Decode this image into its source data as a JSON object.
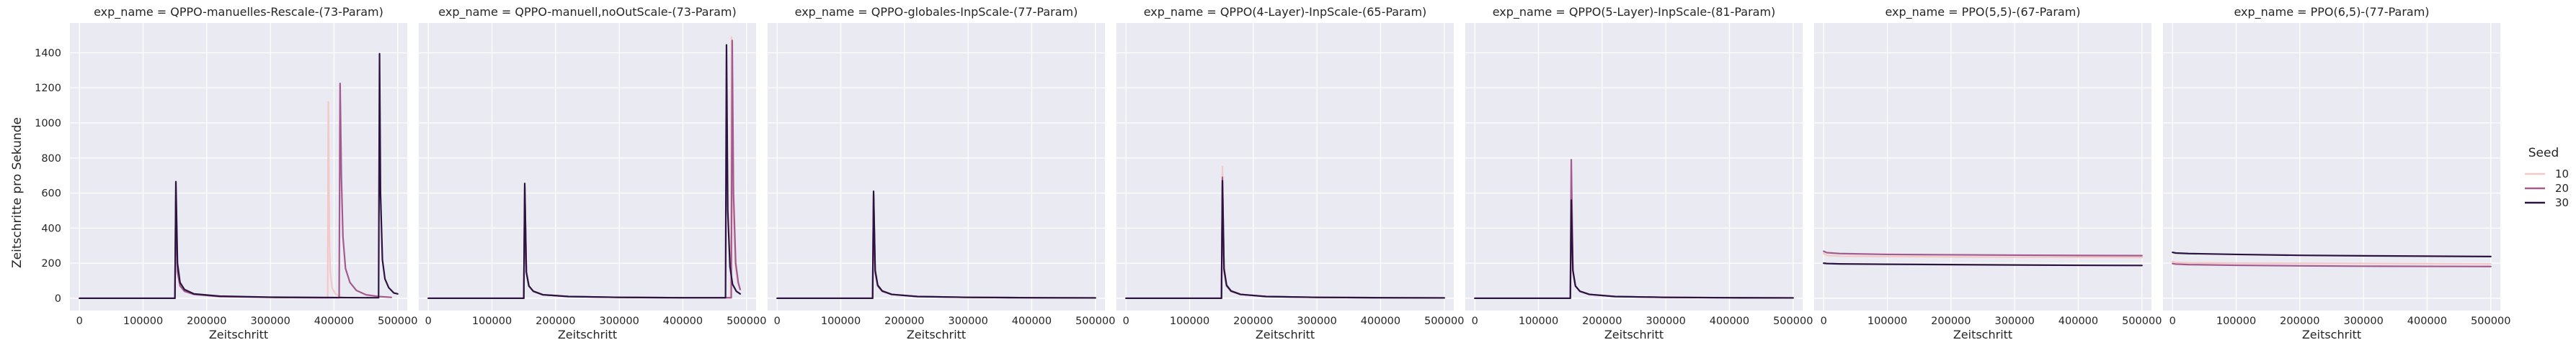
{
  "figure": {
    "ylabel": "Zeitschritte pro Sekunde",
    "xlabel": "Zeitschritt",
    "legend": {
      "title": "Seed",
      "entries": [
        {
          "label": "10",
          "color": "#f3c8c7"
        },
        {
          "label": "20",
          "color": "#a45a8e"
        },
        {
          "label": "30",
          "color": "#2c1440"
        }
      ],
      "placement": "right"
    }
  },
  "chart_data": [
    {
      "type": "line",
      "title": "exp_name = QPPO-manuelles-Rescale-(73-Param)",
      "xlabel": "Zeitschritt",
      "ylabel": "Zeitschritte pro Sekunde",
      "xlim": [
        -15000,
        515000
      ],
      "ylim": [
        -70,
        1570
      ],
      "xticks": [
        0,
        100000,
        200000,
        300000,
        400000,
        500000
      ],
      "xticklabels": [
        "0",
        "100000",
        "200000",
        "300000",
        "400000",
        "500000"
      ],
      "yticks": [
        0,
        200,
        400,
        600,
        800,
        1000,
        1200,
        1400
      ],
      "yticklabels": [
        "0",
        "200",
        "400",
        "600",
        "800",
        "1000",
        "1200",
        "1400"
      ],
      "grid": true,
      "series": [
        {
          "name": "10",
          "color": "#f3c8c7",
          "x": [
            0,
            100000,
            150000,
            151500,
            154000,
            158000,
            165000,
            180000,
            220000,
            300000,
            380000,
            390000,
            391000,
            392500,
            394000,
            397000,
            402000,
            410000,
            415000
          ],
          "y": [
            0,
            0,
            0,
            580,
            150,
            70,
            40,
            22,
            10,
            5,
            3,
            3,
            1120,
            400,
            150,
            60,
            25,
            10,
            5
          ]
        },
        {
          "name": "20",
          "color": "#a45a8e",
          "x": [
            0,
            100000,
            150000,
            151500,
            154000,
            158000,
            165000,
            180000,
            220000,
            300000,
            380000,
            408000,
            409500,
            411500,
            414000,
            418000,
            425000,
            435000,
            450000,
            470000,
            490000
          ],
          "y": [
            0,
            0,
            0,
            620,
            150,
            70,
            40,
            22,
            10,
            5,
            3,
            3,
            1225,
            700,
            350,
            170,
            90,
            45,
            20,
            10,
            5
          ]
        },
        {
          "name": "30",
          "color": "#2c1440",
          "x": [
            0,
            100000,
            150000,
            151500,
            154000,
            158000,
            165000,
            180000,
            220000,
            300000,
            400000,
            460000,
            470000,
            471500,
            473000,
            476000,
            480000,
            486000,
            494000,
            500000
          ],
          "y": [
            0,
            0,
            0,
            665,
            200,
            90,
            50,
            25,
            12,
            6,
            4,
            3,
            3,
            1395,
            600,
            220,
            110,
            60,
            30,
            25
          ]
        }
      ]
    },
    {
      "type": "line",
      "title": "exp_name = QPPO-manuell,noOutScale-(73-Param)",
      "xlabel": "Zeitschritt",
      "xlim": [
        -15000,
        515000
      ],
      "ylim": [
        -70,
        1570
      ],
      "xticks": [
        0,
        100000,
        200000,
        300000,
        400000,
        500000
      ],
      "xticklabels": [
        "0",
        "100000",
        "200000",
        "300000",
        "400000",
        "500000"
      ],
      "grid": true,
      "series": [
        {
          "name": "10",
          "color": "#f3c8c7",
          "x": [
            0,
            100000,
            150000,
            151500,
            154000,
            158000,
            165000,
            180000,
            220000,
            300000,
            400000,
            465000,
            475000,
            476500,
            478500,
            482000,
            486000,
            490000
          ],
          "y": [
            0,
            0,
            0,
            600,
            150,
            70,
            40,
            20,
            10,
            5,
            3,
            3,
            3,
            1490,
            600,
            200,
            90,
            50
          ]
        },
        {
          "name": "20",
          "color": "#a45a8e",
          "x": [
            0,
            100000,
            150000,
            151500,
            154000,
            158000,
            165000,
            180000,
            220000,
            300000,
            400000,
            465000,
            476000,
            477500,
            479500,
            483000,
            487000,
            490000
          ],
          "y": [
            0,
            0,
            0,
            630,
            150,
            70,
            40,
            20,
            10,
            5,
            3,
            3,
            3,
            1470,
            600,
            200,
            90,
            50
          ]
        },
        {
          "name": "30",
          "color": "#2c1440",
          "x": [
            0,
            100000,
            150000,
            151500,
            154000,
            158000,
            165000,
            180000,
            220000,
            300000,
            400000,
            455000,
            467000,
            468500,
            470500,
            474000,
            478000,
            484000,
            490000
          ],
          "y": [
            0,
            0,
            0,
            655,
            150,
            70,
            40,
            20,
            10,
            5,
            3,
            3,
            3,
            1445,
            500,
            180,
            80,
            40,
            25
          ]
        }
      ]
    },
    {
      "type": "line",
      "title": "exp_name = QPPO-globales-InpScale-(77-Param)",
      "xlabel": "Zeitschritt",
      "xlim": [
        -15000,
        515000
      ],
      "ylim": [
        -70,
        1570
      ],
      "xticks": [
        0,
        100000,
        200000,
        300000,
        400000,
        500000
      ],
      "xticklabels": [
        "0",
        "100000",
        "200000",
        "300000",
        "400000",
        "500000"
      ],
      "grid": true,
      "series": [
        {
          "name": "10",
          "color": "#f3c8c7",
          "x": [
            0,
            100000,
            150000,
            151500,
            154000,
            158000,
            165000,
            180000,
            220000,
            300000,
            400000,
            500000
          ],
          "y": [
            0,
            0,
            0,
            560,
            150,
            70,
            40,
            22,
            10,
            5,
            3,
            2
          ]
        },
        {
          "name": "20",
          "color": "#a45a8e",
          "x": [
            0,
            100000,
            150000,
            151500,
            154000,
            158000,
            165000,
            180000,
            220000,
            300000,
            400000,
            500000
          ],
          "y": [
            0,
            0,
            0,
            590,
            150,
            70,
            40,
            22,
            10,
            5,
            3,
            2
          ]
        },
        {
          "name": "30",
          "color": "#2c1440",
          "x": [
            0,
            100000,
            150000,
            151500,
            154000,
            158000,
            165000,
            180000,
            220000,
            300000,
            400000,
            500000
          ],
          "y": [
            0,
            0,
            0,
            610,
            160,
            75,
            42,
            22,
            10,
            5,
            3,
            2
          ]
        }
      ]
    },
    {
      "type": "line",
      "title": "exp_name = QPPO(4-Layer)-InpScale-(65-Param)",
      "xlabel": "Zeitschritt",
      "xlim": [
        -15000,
        515000
      ],
      "ylim": [
        -70,
        1570
      ],
      "xticks": [
        0,
        100000,
        200000,
        300000,
        400000,
        500000
      ],
      "xticklabels": [
        "0",
        "100000",
        "200000",
        "300000",
        "400000",
        "500000"
      ],
      "grid": true,
      "series": [
        {
          "name": "10",
          "color": "#f3c8c7",
          "x": [
            0,
            100000,
            150000,
            151500,
            154000,
            158000,
            165000,
            180000,
            220000,
            300000,
            400000,
            500000
          ],
          "y": [
            0,
            0,
            0,
            750,
            160,
            70,
            40,
            22,
            10,
            5,
            3,
            2
          ]
        },
        {
          "name": "20",
          "color": "#a45a8e",
          "x": [
            0,
            100000,
            150000,
            151500,
            154000,
            158000,
            165000,
            180000,
            220000,
            300000,
            400000,
            500000
          ],
          "y": [
            0,
            0,
            0,
            690,
            160,
            70,
            40,
            22,
            10,
            5,
            3,
            2
          ]
        },
        {
          "name": "30",
          "color": "#2c1440",
          "x": [
            0,
            100000,
            150000,
            151500,
            154000,
            158000,
            165000,
            180000,
            220000,
            300000,
            400000,
            500000
          ],
          "y": [
            0,
            0,
            0,
            670,
            170,
            75,
            42,
            22,
            10,
            5,
            3,
            2
          ]
        }
      ]
    },
    {
      "type": "line",
      "title": "exp_name = QPPO(5-Layer)-InpScale-(81-Param)",
      "xlabel": "Zeitschritt",
      "xlim": [
        -15000,
        515000
      ],
      "ylim": [
        -70,
        1570
      ],
      "xticks": [
        0,
        100000,
        200000,
        300000,
        400000,
        500000
      ],
      "xticklabels": [
        "0",
        "100000",
        "200000",
        "300000",
        "400000",
        "500000"
      ],
      "grid": true,
      "series": [
        {
          "name": "10",
          "color": "#f3c8c7",
          "x": [
            0,
            100000,
            150000,
            151500,
            154000,
            158000,
            165000,
            180000,
            220000,
            300000,
            400000,
            500000
          ],
          "y": [
            0,
            0,
            0,
            520,
            150,
            70,
            40,
            22,
            10,
            5,
            3,
            2
          ]
        },
        {
          "name": "20",
          "color": "#a45a8e",
          "x": [
            0,
            100000,
            150000,
            151500,
            154000,
            158000,
            165000,
            180000,
            220000,
            300000,
            400000,
            500000
          ],
          "y": [
            0,
            0,
            0,
            790,
            160,
            70,
            40,
            22,
            10,
            5,
            3,
            2
          ]
        },
        {
          "name": "30",
          "color": "#2c1440",
          "x": [
            0,
            100000,
            150000,
            151500,
            154000,
            158000,
            165000,
            180000,
            220000,
            300000,
            400000,
            500000
          ],
          "y": [
            0,
            0,
            0,
            560,
            160,
            70,
            40,
            22,
            10,
            5,
            3,
            2
          ]
        }
      ]
    },
    {
      "type": "line",
      "title": "exp_name = PPO(5,5)-(67-Param)",
      "xlabel": "Zeitschritt",
      "xlim": [
        -15000,
        515000
      ],
      "ylim": [
        -70,
        1570
      ],
      "xticks": [
        0,
        100000,
        200000,
        300000,
        400000,
        500000
      ],
      "xticklabels": [
        "0",
        "100000",
        "200000",
        "300000",
        "400000",
        "500000"
      ],
      "grid": true,
      "series": [
        {
          "name": "10",
          "color": "#f3c8c7",
          "x": [
            0,
            5000,
            25000,
            100000,
            200000,
            300000,
            400000,
            500000
          ],
          "y": [
            255,
            245,
            240,
            238,
            236,
            235,
            234,
            233
          ]
        },
        {
          "name": "20",
          "color": "#a45a8e",
          "x": [
            0,
            5000,
            25000,
            100000,
            200000,
            300000,
            400000,
            500000
          ],
          "y": [
            268,
            260,
            255,
            250,
            248,
            246,
            244,
            243
          ]
        },
        {
          "name": "30",
          "color": "#2c1440",
          "x": [
            0,
            5000,
            25000,
            100000,
            200000,
            300000,
            400000,
            500000
          ],
          "y": [
            200,
            198,
            196,
            194,
            192,
            190,
            188,
            187
          ]
        }
      ]
    },
    {
      "type": "line",
      "title": "exp_name = PPO(6,5)-(77-Param)",
      "xlabel": "Zeitschritt",
      "xlim": [
        -15000,
        515000
      ],
      "ylim": [
        -70,
        1570
      ],
      "xticks": [
        0,
        100000,
        200000,
        300000,
        400000,
        500000
      ],
      "xticklabels": [
        "0",
        "100000",
        "200000",
        "300000",
        "400000",
        "500000"
      ],
      "grid": true,
      "series": [
        {
          "name": "10",
          "color": "#f3c8c7",
          "x": [
            0,
            5000,
            25000,
            100000,
            200000,
            300000,
            400000,
            500000
          ],
          "y": [
            210,
            205,
            202,
            200,
            199,
            198,
            197,
            196
          ]
        },
        {
          "name": "20",
          "color": "#a45a8e",
          "x": [
            0,
            5000,
            25000,
            100000,
            200000,
            300000,
            400000,
            500000
          ],
          "y": [
            198,
            195,
            192,
            188,
            185,
            183,
            182,
            181
          ]
        },
        {
          "name": "30",
          "color": "#2c1440",
          "x": [
            0,
            5000,
            25000,
            100000,
            200000,
            300000,
            400000,
            500000
          ],
          "y": [
            262,
            258,
            255,
            250,
            245,
            242,
            240,
            238
          ]
        }
      ]
    }
  ]
}
